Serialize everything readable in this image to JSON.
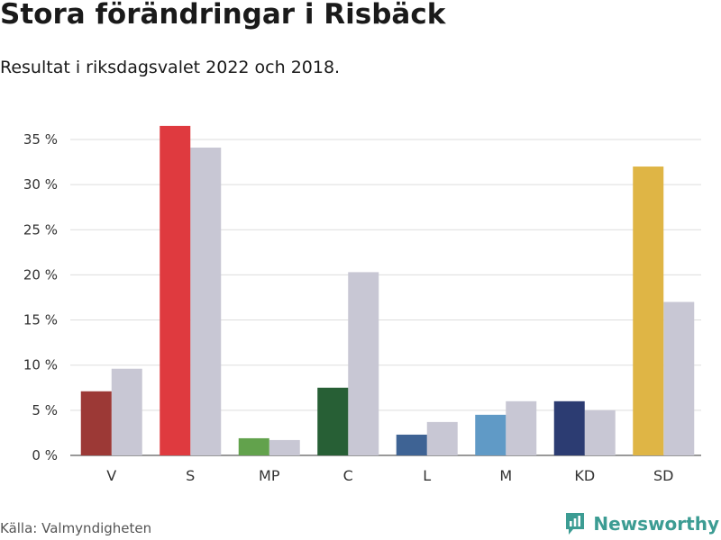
{
  "header": {
    "title": "Stora förändringar i Risbäck",
    "subtitle": "Resultat i riksdagsvalet 2022 och 2018."
  },
  "footer": {
    "source": "Källa: Valmyndigheten",
    "brand": "Newsworthy",
    "brand_icon": "bar-chart-icon"
  },
  "colors": {
    "gridline": "#dddddd",
    "axis": "#333333",
    "previous_year": "#c8c7d4",
    "brand": "#3c9c93"
  },
  "chart_data": {
    "type": "bar",
    "title": "Stora förändringar i Risbäck",
    "subtitle": "Resultat i riksdagsvalet 2022 och 2018.",
    "categories": [
      "V",
      "S",
      "MP",
      "C",
      "L",
      "M",
      "KD",
      "SD"
    ],
    "series": [
      {
        "name": "2022",
        "values": [
          7.1,
          36.5,
          1.9,
          7.5,
          2.3,
          4.5,
          6.0,
          32.0
        ],
        "colors": [
          "#9c3936",
          "#df3a3f",
          "#62a24c",
          "#275f35",
          "#3e6394",
          "#609ac6",
          "#2c3c72",
          "#dfb545"
        ]
      },
      {
        "name": "2018",
        "values": [
          9.6,
          34.1,
          1.7,
          20.3,
          3.7,
          6.0,
          5.0,
          17.0
        ],
        "color": "#c8c7d4"
      }
    ],
    "yticks": [
      0,
      5,
      10,
      15,
      20,
      25,
      30,
      35
    ],
    "ytick_labels": [
      "0 %",
      "5 %",
      "10 %",
      "15 %",
      "20 %",
      "25 %",
      "30 %",
      "35 %"
    ],
    "ylim": [
      0,
      37
    ],
    "xlabel": "",
    "ylabel": "",
    "grid": true,
    "legend": "none"
  }
}
